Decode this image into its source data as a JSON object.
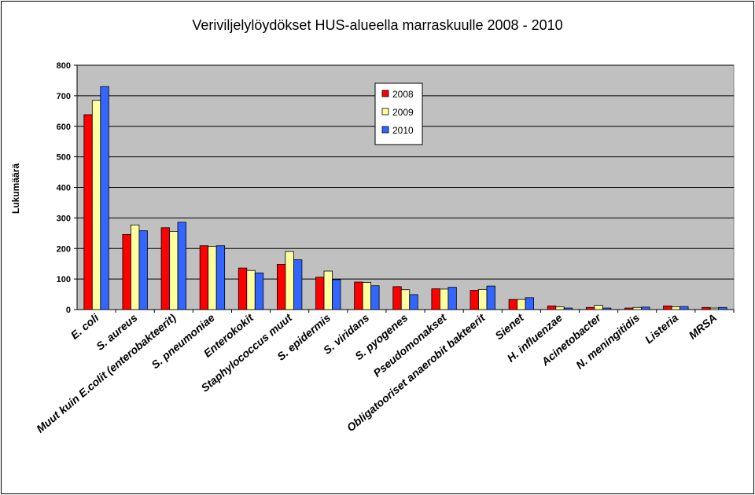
{
  "chart_data": {
    "type": "bar",
    "title": "Veriviljelylöydökset HUS-alueella marraskuulle 2008 - 2010",
    "ylabel": "Lukumäärä",
    "xlabel": "",
    "ylim": [
      0,
      800
    ],
    "yticks": [
      0,
      100,
      200,
      300,
      400,
      500,
      600,
      700,
      800
    ],
    "grid": true,
    "legend_position": "top-center",
    "categories": [
      "E. coli",
      "S. aureus",
      "Muut kuin E.colit (enterobakteerit)",
      "S. pneumoniae",
      "Enterokokit",
      "Staphylococcus muut",
      "S. epidermis",
      "S. viridans",
      "S. pyogenes",
      "Pseudomonakset",
      "Obligatooriset anaerobit bakteerit",
      "Sienet",
      "H. influenzae",
      "Acinetobacter",
      "N. meningitidis",
      "Listeria",
      "MRSA"
    ],
    "series": [
      {
        "name": "2008",
        "color": "#ff0000",
        "values": [
          638,
          246,
          268,
          209,
          136,
          148,
          106,
          90,
          75,
          68,
          63,
          33,
          12,
          7,
          5,
          12,
          7
        ]
      },
      {
        "name": "2009",
        "color": "#ffffa0",
        "values": [
          685,
          277,
          256,
          207,
          128,
          190,
          126,
          89,
          65,
          67,
          66,
          33,
          9,
          14,
          7,
          9,
          5
        ]
      },
      {
        "name": "2010",
        "color": "#3366ff",
        "values": [
          730,
          258,
          286,
          209,
          120,
          163,
          98,
          78,
          49,
          73,
          77,
          39,
          5,
          5,
          8,
          10,
          7
        ]
      }
    ],
    "plot_background": "#c0c0c0"
  }
}
